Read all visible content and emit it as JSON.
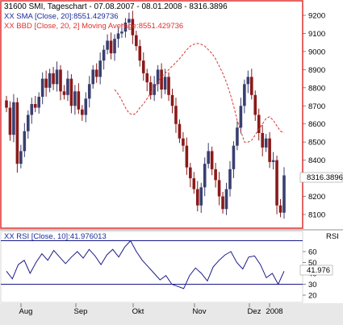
{
  "main_chart": {
    "header": {
      "line1": "31600  SMI, Tageschart - 07.08.2007 - 08.01.2008 - 8316.3896",
      "line2": "XX SMA [Close, 20]:8551.429736",
      "line3": "XX BBD [Close, 20, 2] Moving Average:8551.429736"
    },
    "y_ticks": [
      "9200",
      "9100",
      "9000",
      "8900",
      "8800",
      "8700",
      "8600",
      "8500",
      "8400",
      "8300",
      "8200",
      "8100"
    ],
    "last_value_badge": "8316.3896"
  },
  "rsi_panel": {
    "header": "XX RSI [Close, 10]:41.976013",
    "corner_label": "RSI",
    "y_ticks": [
      "60",
      "50",
      "40",
      "30",
      "20"
    ],
    "upper_level": 70,
    "lower_level": 30,
    "last_value_badge": "41.976"
  },
  "x_axis": {
    "labels": [
      "Aug",
      "Sep",
      "Okt",
      "Nov",
      "Dez",
      "2008"
    ]
  },
  "colors": {
    "frame_red": "#e03030",
    "up_candle": "#3a3f70",
    "down_candle": "#8a1a1a",
    "sma_line": "#e03030",
    "rsi_line": "#1a1a8a",
    "axis_bg": "#e8e8e8",
    "panel_bg": "#ffffff"
  },
  "chart_data": {
    "type": "candlestick",
    "title": "31600  SMI, Tageschart - 07.08.2007 - 08.01.2008 - 8316.3896",
    "ylim": [
      8050,
      9260
    ],
    "x_labels": [
      "Aug",
      "Sep",
      "Okt",
      "Nov",
      "Dez",
      "2008"
    ],
    "close_last": 8316.3896,
    "sma_last": 8551.429736,
    "ohlc_close_approx": [
      8690,
      8540,
      8720,
      8380,
      8450,
      8560,
      8650,
      8710,
      8690,
      8750,
      8850,
      8800,
      8880,
      8820,
      8900,
      8780,
      8760,
      8850,
      8700,
      8780,
      8680,
      8650,
      8740,
      8820,
      8900,
      8860,
      8950,
      9010,
      9060,
      8990,
      9070,
      9100,
      9110,
      9160,
      9180,
      9090,
      9030,
      8950,
      8880,
      8830,
      8760,
      8820,
      8900,
      8790,
      8860,
      8760,
      8700,
      8600,
      8520,
      8480,
      8360,
      8300,
      8240,
      8150,
      8250,
      8380,
      8450,
      8350,
      8290,
      8200,
      8130,
      8240,
      8350,
      8480,
      8580,
      8700,
      8820,
      8860,
      8760,
      8650,
      8550,
      8470,
      8520,
      8390,
      8400,
      8150,
      8110,
      8316
    ],
    "sma_approx": [
      8790,
      8765,
      8730,
      8690,
      8660,
      8650,
      8660,
      8690,
      8710,
      8740,
      8770,
      8800,
      8830,
      8860,
      8880,
      8900,
      8920,
      8940,
      8960,
      8985,
      9010,
      9030,
      9040,
      9045,
      9040,
      9030,
      9010,
      8990,
      8960,
      8920,
      8880,
      8830,
      8770,
      8700,
      8620,
      8560,
      8500,
      8500,
      8510,
      8540,
      8570,
      8600,
      8630,
      8640,
      8620,
      8590,
      8560,
      8551
    ],
    "rsi_approx": [
      42,
      35,
      48,
      52,
      40,
      50,
      58,
      52,
      61,
      55,
      49,
      55,
      60,
      54,
      62,
      56,
      48,
      57,
      62,
      55,
      64,
      70,
      60,
      52,
      46,
      40,
      34,
      38,
      30,
      28,
      26,
      38,
      45,
      40,
      33,
      46,
      52,
      57,
      60,
      50,
      44,
      55,
      56,
      48,
      36,
      40,
      30,
      42
    ]
  }
}
